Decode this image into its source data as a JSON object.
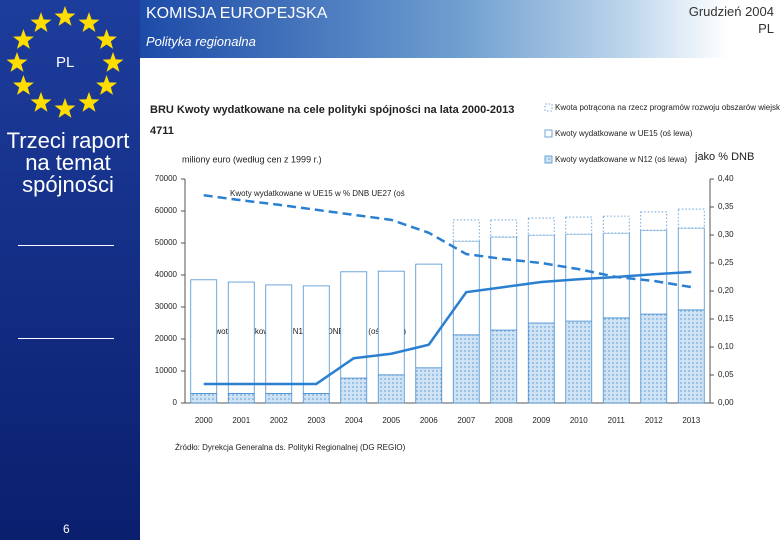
{
  "header": {
    "org": "KOMISJA EUROPEJSKA",
    "unit": "Polityka regionalna",
    "date": "Grudzień 2004",
    "lang": "PL"
  },
  "sidebar": {
    "lang": "PL",
    "title": "Trzeci raport na temat spójności",
    "page": "6"
  },
  "chart_data": {
    "type": "bar",
    "stacked": true,
    "title": "BRU Kwoty wydatkowane na cele polityki spójności na lata 2000-2013",
    "subtitle": "4711",
    "ylabel": "miliony euro (według cen z 1999 r.)",
    "y2label": "jako % DNB",
    "source": "Źródło: Dyrekcja Generalna ds. Polityki Regionalnej (DG REGIO)",
    "annotations": [
      "Kwoty wydatkowane w UE15 w % DNB UE27 (oś",
      "Kwoty wydatkowane w N12 w % DNB UE27 (oś prawa)"
    ],
    "categories": [
      "2000",
      "2001",
      "2002",
      "2003",
      "2004",
      "2005",
      "2006",
      "2007",
      "2008",
      "2009",
      "2010",
      "2011",
      "2012",
      "2013"
    ],
    "series": [
      {
        "name": "Kwoty wydatkowane w N12 (oś lewa)",
        "type": "bar",
        "style": "hatched",
        "color": "#4a90d0",
        "values": [
          3000,
          3000,
          3000,
          3000,
          7800,
          8800,
          11000,
          21300,
          22800,
          25000,
          25600,
          26600,
          27800,
          29100
        ]
      },
      {
        "name": "Kwoty wydatkowane w UE15 (oś lewa)",
        "type": "bar",
        "style": "outline",
        "color": "#4a90d0",
        "values": [
          35500,
          34800,
          33900,
          33600,
          33200,
          32400,
          32400,
          29300,
          29100,
          27500,
          27200,
          26500,
          26200,
          25600
        ]
      },
      {
        "name": "Kwota potrącona na rzecz programów rozwoju obszarów wiejskich",
        "type": "bar",
        "style": "dotted",
        "color": "#4a90d0",
        "values": [
          null,
          null,
          null,
          null,
          null,
          null,
          null,
          6600,
          5300,
          5300,
          5300,
          5300,
          5700,
          5900
        ]
      },
      {
        "type": "line",
        "axis": "y2",
        "style": "dashed",
        "color": "#2a7fd0",
        "values": [
          0.371,
          0.362,
          0.354,
          0.345,
          0.336,
          0.327,
          0.304,
          0.266,
          0.257,
          0.25,
          0.239,
          0.225,
          0.218,
          0.207
        ]
      },
      {
        "type": "line",
        "axis": "y2",
        "style": "solid",
        "color": "#2a7fd0",
        "values": [
          0.034,
          0.034,
          0.034,
          0.034,
          0.08,
          0.088,
          0.104,
          0.198,
          0.207,
          0.216,
          0.221,
          0.225,
          0.23,
          0.234
        ]
      }
    ],
    "ylim": [
      0,
      70000
    ],
    "yticks": [
      0,
      10000,
      20000,
      30000,
      40000,
      50000,
      60000,
      70000
    ],
    "y2lim": [
      0,
      0.4
    ],
    "y2ticks": [
      {
        "value": 0,
        "label": "0,00"
      },
      {
        "value": 0.05,
        "label": "0,05"
      },
      {
        "value": 0.1,
        "label": "0,10"
      },
      {
        "value": 0.15,
        "label": "0,15"
      },
      {
        "value": 0.2,
        "label": "0,20"
      },
      {
        "value": 0.25,
        "label": "0,25"
      },
      {
        "value": 0.3,
        "label": "0,30"
      },
      {
        "value": 0.35,
        "label": "0,35"
      },
      {
        "value": 0.4,
        "label": "0,40"
      }
    ]
  }
}
